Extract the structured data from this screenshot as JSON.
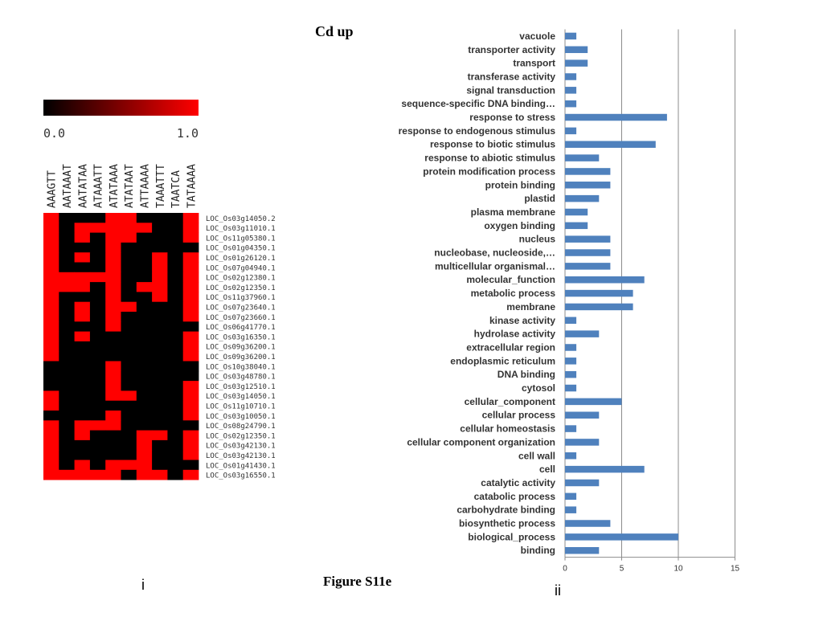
{
  "title": "Cd up",
  "figure_label": "Figure S11e",
  "panel_i_label": "i",
  "panel_ii_label": "ii",
  "chart_data": [
    {
      "type": "heatmap",
      "colorbar": {
        "min_label": "0.0",
        "max_label": "1.0",
        "low_color": "#000000",
        "high_color": "#ff0000"
      },
      "columns": [
        "AAAGTT",
        "AATAAAT",
        "AATATAA",
        "ATAAATT",
        "ATATAAA",
        "ATATAAT",
        "ATTAAAA",
        "TAAATTT",
        "TAATCA",
        "TATAAAA"
      ],
      "rows": [
        "LOC_Os03g14050.2",
        "LOC_Os03g11010.1",
        "LOC_Os11g05380.1",
        "LOC_Os01g04350.1",
        "LOC_Os01g26120.1",
        "LOC_Os07g04940.1",
        "LOC_Os02g12380.1",
        "LOC_Os02g12350.1",
        "LOC_Os11g37960.1",
        "LOC_Os07g23640.1",
        "LOC_Os07g23660.1",
        "LOC_Os06g41770.1",
        "LOC_Os03g16350.1",
        "LOC_Os09g36200.1",
        "LOC_Os09g36200.1",
        "LOC_Os10g38040.1",
        "LOC_Os03g48780.1",
        "LOC_Os03g12510.1",
        "LOC_Os03g14050.1",
        "LOC_Os11g10710.1",
        "LOC_Os03g10050.1",
        "LOC_Os08g24790.1",
        "LOC_Os02g12350.1",
        "LOC_Os03g42130.1",
        "LOC_Os03g42130.1",
        "LOC_Os01g41430.1",
        "LOC_Os03g16550.1"
      ],
      "values": [
        [
          1,
          0,
          0,
          0,
          1,
          1,
          0,
          0,
          0,
          1
        ],
        [
          1,
          0,
          1,
          1,
          1,
          1,
          1,
          0,
          0,
          1
        ],
        [
          1,
          0,
          1,
          0,
          1,
          1,
          0,
          0,
          0,
          1
        ],
        [
          1,
          0,
          0,
          0,
          1,
          0,
          0,
          0,
          0,
          0
        ],
        [
          1,
          0,
          1,
          0,
          1,
          0,
          0,
          1,
          0,
          1
        ],
        [
          1,
          0,
          0,
          0,
          1,
          0,
          0,
          1,
          0,
          1
        ],
        [
          1,
          1,
          1,
          1,
          1,
          0,
          0,
          1,
          0,
          1
        ],
        [
          1,
          1,
          1,
          0,
          1,
          0,
          1,
          1,
          0,
          1
        ],
        [
          1,
          0,
          0,
          0,
          1,
          0,
          0,
          1,
          0,
          1
        ],
        [
          1,
          0,
          1,
          0,
          1,
          1,
          0,
          0,
          0,
          1
        ],
        [
          1,
          0,
          1,
          0,
          1,
          0,
          0,
          0,
          0,
          1
        ],
        [
          1,
          0,
          0,
          0,
          1,
          0,
          0,
          0,
          0,
          0
        ],
        [
          1,
          0,
          1,
          0,
          0,
          0,
          0,
          0,
          0,
          1
        ],
        [
          1,
          0,
          0,
          0,
          0,
          0,
          0,
          0,
          0,
          1
        ],
        [
          1,
          0,
          0,
          0,
          0,
          0,
          0,
          0,
          0,
          1
        ],
        [
          0,
          0,
          0,
          0,
          1,
          0,
          0,
          0,
          0,
          0
        ],
        [
          0,
          0,
          0,
          0,
          1,
          0,
          0,
          0,
          0,
          0
        ],
        [
          0,
          0,
          0,
          0,
          1,
          0,
          0,
          0,
          0,
          1
        ],
        [
          1,
          0,
          0,
          0,
          1,
          1,
          0,
          0,
          0,
          1
        ],
        [
          1,
          0,
          0,
          0,
          0,
          0,
          0,
          0,
          0,
          1
        ],
        [
          0,
          0,
          0,
          0,
          1,
          0,
          0,
          0,
          0,
          1
        ],
        [
          1,
          0,
          1,
          1,
          1,
          0,
          0,
          0,
          0,
          0
        ],
        [
          1,
          0,
          1,
          0,
          0,
          0,
          1,
          1,
          0,
          1
        ],
        [
          1,
          0,
          0,
          0,
          0,
          0,
          1,
          0,
          0,
          1
        ],
        [
          1,
          0,
          0,
          0,
          0,
          0,
          1,
          0,
          0,
          1
        ],
        [
          1,
          0,
          1,
          0,
          1,
          1,
          1,
          0,
          0,
          0
        ],
        [
          1,
          1,
          1,
          1,
          1,
          0,
          1,
          1,
          0,
          1
        ]
      ]
    },
    {
      "type": "bar",
      "orientation": "horizontal",
      "categories": [
        "vacuole",
        "transporter activity",
        "transport",
        "transferase activity",
        "signal transduction",
        "sequence-specific DNA binding…",
        "response to stress",
        "response to endogenous stimulus",
        "response to biotic stimulus",
        "response to abiotic stimulus",
        "protein modification process",
        "protein binding",
        "plastid",
        "plasma membrane",
        "oxygen binding",
        "nucleus",
        "nucleobase, nucleoside,…",
        "multicellular organismal…",
        "molecular_function",
        "metabolic process",
        "membrane",
        "kinase activity",
        "hydrolase activity",
        "extracellular region",
        "endoplasmic reticulum",
        "DNA binding",
        "cytosol",
        "cellular_component",
        "cellular process",
        "cellular homeostasis",
        "cellular component organization",
        "cell wall",
        "cell",
        "catalytic activity",
        "catabolic process",
        "carbohydrate binding",
        "biosynthetic process",
        "biological_process",
        "binding"
      ],
      "values": [
        1,
        2,
        2,
        1,
        1,
        1,
        9,
        1,
        8,
        3,
        4,
        4,
        3,
        2,
        2,
        4,
        4,
        4,
        7,
        6,
        6,
        1,
        3,
        1,
        1,
        1,
        1,
        5,
        3,
        1,
        3,
        1,
        7,
        3,
        1,
        1,
        4,
        10,
        3
      ],
      "xlim": [
        0,
        15
      ],
      "xticks": [
        0,
        5,
        10,
        15
      ],
      "grid": true,
      "bar_color": "#4f81bd"
    }
  ]
}
